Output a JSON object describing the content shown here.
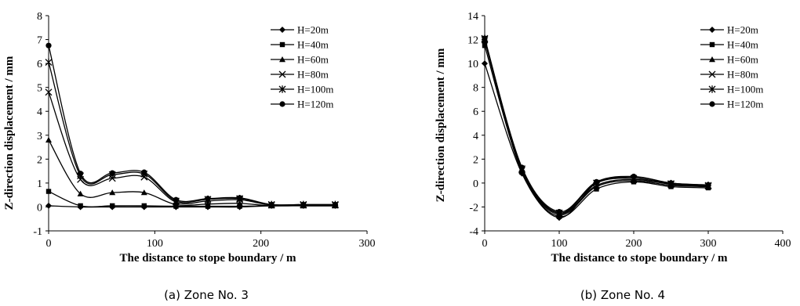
{
  "chart_data": [
    {
      "type": "line",
      "caption": "(a) Zone No. 3",
      "xlabel": "The distance to stope boundary / m",
      "ylabel": "Z-direction displacement / mm",
      "xlim": [
        0,
        300
      ],
      "ylim": [
        -1,
        8
      ],
      "xticks": [
        0,
        100,
        200,
        300
      ],
      "yticks": [
        -1,
        0,
        1,
        2,
        3,
        4,
        5,
        6,
        7,
        8
      ],
      "grid": false,
      "legend_position": "top-right",
      "x": [
        0,
        30,
        60,
        90,
        120,
        150,
        180,
        210,
        240,
        270
      ],
      "series": [
        {
          "name": "H=20m",
          "marker": "diamond",
          "values": [
            0.05,
            0.0,
            0.0,
            0.0,
            0.0,
            0.0,
            0.0,
            0.05,
            0.05,
            0.05
          ]
        },
        {
          "name": "H=40m",
          "marker": "square",
          "values": [
            0.65,
            0.05,
            0.05,
            0.05,
            0.03,
            0.03,
            0.03,
            0.05,
            0.05,
            0.05
          ]
        },
        {
          "name": "H=60m",
          "marker": "triangle",
          "values": [
            2.8,
            0.55,
            0.6,
            0.6,
            0.1,
            0.12,
            0.15,
            0.05,
            0.05,
            0.05
          ]
        },
        {
          "name": "H=80m",
          "marker": "x",
          "values": [
            4.8,
            1.15,
            1.2,
            1.25,
            0.2,
            0.25,
            0.3,
            0.08,
            0.08,
            0.08
          ]
        },
        {
          "name": "H=100m",
          "marker": "star",
          "values": [
            6.05,
            1.3,
            1.35,
            1.38,
            0.25,
            0.32,
            0.35,
            0.1,
            0.1,
            0.1
          ]
        },
        {
          "name": "H=120m",
          "marker": "circle",
          "values": [
            6.75,
            1.4,
            1.42,
            1.45,
            0.3,
            0.35,
            0.38,
            0.1,
            0.1,
            0.1
          ]
        }
      ]
    },
    {
      "type": "line",
      "caption": "(b) Zone No. 4",
      "xlabel": "The distance to stope boundary / m",
      "ylabel": "Z-direction displacement / mm",
      "xlim": [
        0,
        400
      ],
      "ylim": [
        -4,
        14
      ],
      "xticks": [
        0,
        100,
        200,
        300,
        400
      ],
      "yticks": [
        -4,
        -2,
        0,
        2,
        4,
        6,
        8,
        10,
        12,
        14
      ],
      "grid": false,
      "legend_position": "top-right",
      "x": [
        0,
        50,
        100,
        150,
        200,
        250,
        300
      ],
      "series": [
        {
          "name": "H=20m",
          "marker": "diamond",
          "values": [
            10.0,
            0.8,
            -2.9,
            0.0,
            0.5,
            0.0,
            -0.2
          ]
        },
        {
          "name": "H=40m",
          "marker": "square",
          "values": [
            11.5,
            0.9,
            -2.8,
            -0.5,
            0.1,
            -0.3,
            -0.4
          ]
        },
        {
          "name": "H=60m",
          "marker": "triangle",
          "values": [
            11.9,
            1.0,
            -2.65,
            -0.3,
            0.2,
            -0.2,
            -0.3
          ]
        },
        {
          "name": "H=80m",
          "marker": "x",
          "values": [
            12.0,
            1.1,
            -2.55,
            -0.2,
            0.3,
            -0.1,
            -0.25
          ]
        },
        {
          "name": "H=100m",
          "marker": "star",
          "values": [
            12.1,
            1.2,
            -2.5,
            0.0,
            0.4,
            -0.05,
            -0.2
          ]
        },
        {
          "name": "H=120m",
          "marker": "circle",
          "values": [
            12.1,
            1.3,
            -2.4,
            0.1,
            0.55,
            0.0,
            -0.15
          ]
        }
      ]
    }
  ]
}
